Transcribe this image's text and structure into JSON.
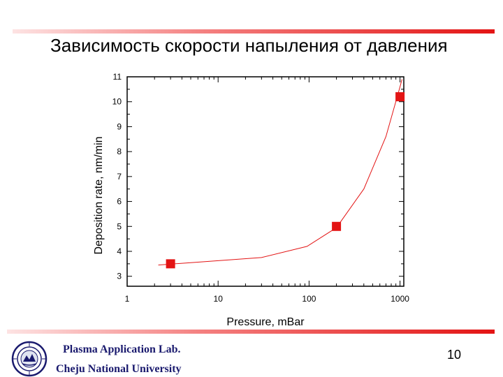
{
  "slide": {
    "title": "Зависимость скорости напыления от давления",
    "lab": "Plasma Application Lab.",
    "university": "Cheju National University",
    "page_number": "10",
    "accent_color": "#e31414",
    "text_color": "#1a1a6e"
  },
  "chart_data": {
    "type": "scatter",
    "xlabel": "Pressure, mBar",
    "ylabel": "Deposition rate, nm/min",
    "xscale": "log",
    "xlim": [
      1,
      1100
    ],
    "ylim": [
      2.6,
      11
    ],
    "xticks": [
      1,
      10,
      100,
      1000
    ],
    "xtick_labels": [
      "1",
      "10",
      "100",
      "1000"
    ],
    "yticks": [
      3,
      4,
      5,
      6,
      7,
      8,
      9,
      10,
      11
    ],
    "ytick_labels": [
      "3",
      "4",
      "5",
      "6",
      "7",
      "8",
      "9",
      "10",
      "11"
    ],
    "series": [
      {
        "marker": "square",
        "color": "#e31414",
        "points": [
          {
            "x": 3,
            "y": 3.5
          },
          {
            "x": 200,
            "y": 5.0
          },
          {
            "x": 1000,
            "y": 10.2
          }
        ]
      }
    ],
    "fit_curve": {
      "color": "#e31414",
      "points": [
        {
          "x": 2.2,
          "y": 3.45
        },
        {
          "x": 30,
          "y": 3.75
        },
        {
          "x": 95,
          "y": 4.2
        },
        {
          "x": 200,
          "y": 4.95
        },
        {
          "x": 400,
          "y": 6.5
        },
        {
          "x": 700,
          "y": 8.6
        },
        {
          "x": 1000,
          "y": 10.6
        },
        {
          "x": 1050,
          "y": 10.9
        }
      ]
    },
    "grid": false,
    "legend": "none"
  }
}
